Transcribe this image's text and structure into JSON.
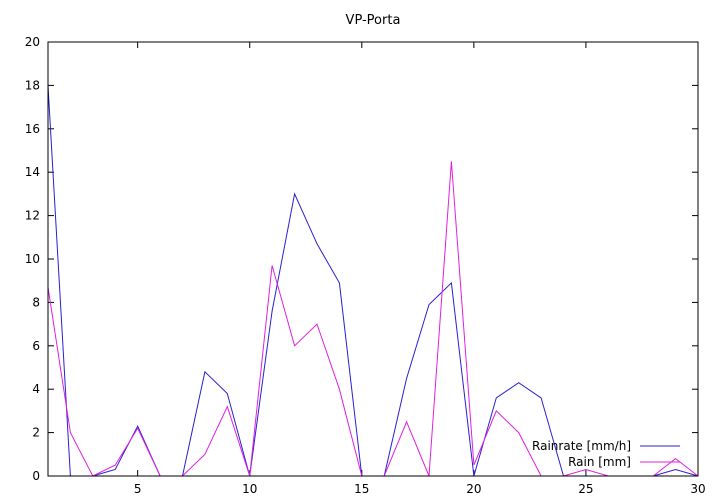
{
  "chart_data": {
    "type": "line",
    "title": "VP-Porta",
    "xlabel": "",
    "ylabel": "",
    "xlim": [
      1,
      30
    ],
    "ylim": [
      0,
      20
    ],
    "x_ticks": [
      5,
      10,
      15,
      20,
      25,
      30
    ],
    "y_ticks": [
      0,
      2,
      4,
      6,
      8,
      10,
      12,
      14,
      16,
      18,
      20
    ],
    "legend_position": "bottom-right",
    "grid": false,
    "x": [
      1,
      2,
      3,
      4,
      5,
      6,
      7,
      8,
      9,
      10,
      11,
      12,
      13,
      14,
      15,
      16,
      17,
      18,
      19,
      20,
      21,
      22,
      23,
      24,
      25,
      26,
      27,
      28,
      29,
      30
    ],
    "series": [
      {
        "name": "Rainrate [mm/h]",
        "color": "#2a1fd0",
        "values": [
          18.0,
          0,
          0,
          0.3,
          2.3,
          0,
          0,
          4.8,
          3.8,
          0,
          7.6,
          13.0,
          10.7,
          8.9,
          0,
          0,
          4.5,
          7.9,
          8.9,
          0,
          3.6,
          4.3,
          3.6,
          0,
          0,
          0,
          0,
          0,
          0.3,
          0
        ]
      },
      {
        "name": "Rain [mm]",
        "color": "#e020e0",
        "values": [
          8.7,
          2.0,
          0,
          0.5,
          2.2,
          0,
          0,
          1.0,
          3.2,
          0,
          9.7,
          6.0,
          7.0,
          4.0,
          0,
          0,
          2.5,
          0,
          14.5,
          0.5,
          3.0,
          2.0,
          0,
          0,
          0.3,
          0,
          0,
          0,
          0.8,
          0
        ]
      }
    ]
  }
}
